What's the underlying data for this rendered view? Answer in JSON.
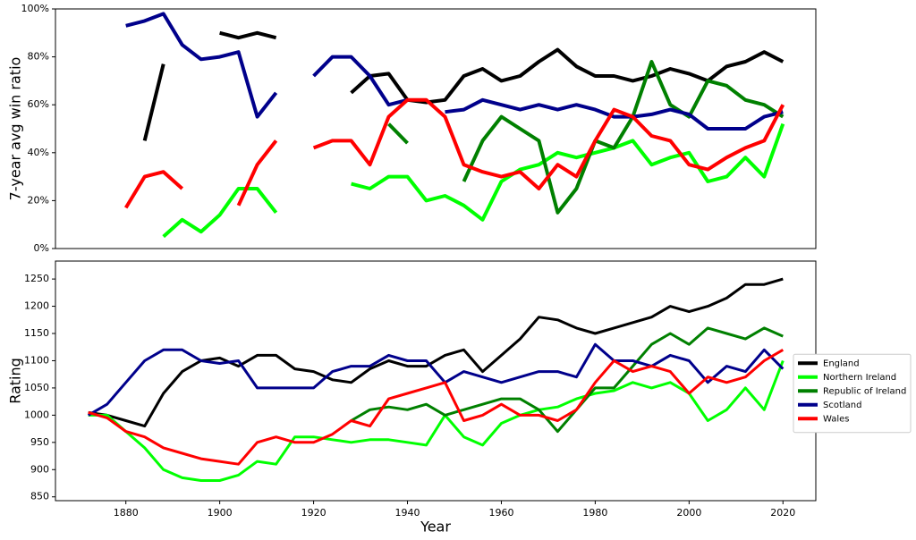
{
  "chart_data": [
    {
      "type": "line",
      "ylabel": "7-year avg win ratio",
      "xlim": [
        1865,
        2027
      ],
      "ylim": [
        0,
        100
      ],
      "yticks": [
        {
          "value": 0,
          "label": "0%"
        },
        {
          "value": 20,
          "label": "20%"
        },
        {
          "value": 40,
          "label": "40%"
        },
        {
          "value": 60,
          "label": "60%"
        },
        {
          "value": 80,
          "label": "80%"
        },
        {
          "value": 100,
          "label": "100%"
        }
      ],
      "x": [
        1872,
        1876,
        1880,
        1884,
        1888,
        1892,
        1896,
        1900,
        1904,
        1908,
        1912,
        1916,
        1920,
        1924,
        1928,
        1932,
        1936,
        1940,
        1944,
        1948,
        1952,
        1956,
        1960,
        1964,
        1968,
        1972,
        1976,
        1980,
        1984,
        1988,
        1992,
        1996,
        2000,
        2004,
        2008,
        2012,
        2016,
        2020
      ],
      "series": [
        {
          "name": "England",
          "color": "#000000",
          "values": [
            null,
            null,
            null,
            45,
            77,
            null,
            null,
            90,
            88,
            90,
            88,
            null,
            null,
            null,
            65,
            72,
            73,
            62,
            61,
            62,
            72,
            75,
            70,
            72,
            78,
            83,
            76,
            72,
            72,
            70,
            72,
            75,
            73,
            70,
            76,
            78,
            82,
            78
          ]
        },
        {
          "name": "Northern Ireland",
          "color": "#00ff00",
          "values": [
            null,
            null,
            null,
            null,
            5,
            12,
            7,
            14,
            25,
            25,
            15,
            null,
            null,
            null,
            27,
            25,
            30,
            30,
            20,
            22,
            18,
            12,
            28,
            33,
            35,
            40,
            38,
            40,
            42,
            45,
            35,
            38,
            40,
            28,
            30,
            38,
            30,
            52
          ]
        },
        {
          "name": "Republic of Ireland",
          "color": "#008000",
          "values": [
            null,
            null,
            null,
            null,
            null,
            null,
            null,
            null,
            null,
            null,
            null,
            null,
            null,
            null,
            null,
            null,
            52,
            44,
            null,
            null,
            28,
            45,
            55,
            50,
            45,
            15,
            25,
            45,
            42,
            55,
            78,
            60,
            55,
            70,
            68,
            62,
            60,
            55
          ]
        },
        {
          "name": "Scotland",
          "color": "#00008b",
          "values": [
            null,
            null,
            93,
            95,
            98,
            85,
            79,
            80,
            82,
            55,
            65,
            null,
            72,
            80,
            80,
            72,
            60,
            62,
            null,
            57,
            58,
            62,
            60,
            58,
            60,
            58,
            60,
            58,
            55,
            55,
            56,
            58,
            56,
            50,
            50,
            50,
            55,
            57
          ]
        },
        {
          "name": "Wales",
          "color": "#ff0000",
          "values": [
            null,
            null,
            17,
            30,
            32,
            25,
            null,
            null,
            18,
            35,
            45,
            null,
            42,
            45,
            45,
            35,
            55,
            62,
            62,
            55,
            35,
            32,
            30,
            32,
            25,
            35,
            30,
            45,
            58,
            55,
            47,
            45,
            35,
            33,
            38,
            42,
            45,
            60
          ]
        }
      ]
    },
    {
      "type": "line",
      "xlabel": "Year",
      "ylabel": "Rating",
      "legend": "right",
      "xlim": [
        1865,
        2027
      ],
      "ylim": [
        843,
        1283
      ],
      "xticks": [
        1880,
        1900,
        1920,
        1940,
        1960,
        1980,
        2000,
        2020
      ],
      "yticks": [
        850,
        900,
        950,
        1000,
        1050,
        1100,
        1150,
        1200,
        1250
      ],
      "x": [
        1872,
        1876,
        1880,
        1884,
        1888,
        1892,
        1896,
        1900,
        1904,
        1908,
        1912,
        1916,
        1920,
        1924,
        1928,
        1932,
        1936,
        1940,
        1944,
        1948,
        1952,
        1956,
        1960,
        1964,
        1968,
        1972,
        1976,
        1980,
        1984,
        1988,
        1992,
        1996,
        2000,
        2004,
        2008,
        2012,
        2016,
        2020
      ],
      "series": [
        {
          "name": "England",
          "color": "#000000",
          "values": [
            1005,
            1000,
            990,
            980,
            1040,
            1080,
            1100,
            1105,
            1090,
            1110,
            1110,
            1085,
            1080,
            1065,
            1060,
            1085,
            1100,
            1090,
            1090,
            1110,
            1120,
            1080,
            1110,
            1140,
            1180,
            1175,
            1160,
            1150,
            1160,
            1170,
            1180,
            1200,
            1190,
            1200,
            1215,
            1240,
            1240,
            1250
          ]
        },
        {
          "name": "Northern Ireland",
          "color": "#00ff00",
          "values": [
            1000,
            1000,
            970,
            940,
            900,
            885,
            880,
            880,
            890,
            915,
            910,
            960,
            960,
            955,
            950,
            955,
            955,
            950,
            945,
            1000,
            960,
            945,
            985,
            1000,
            1010,
            1015,
            1030,
            1040,
            1045,
            1060,
            1050,
            1060,
            1040,
            990,
            1010,
            1050,
            1010,
            1100
          ]
        },
        {
          "name": "Republic of Ireland",
          "color": "#008000",
          "values": [
            null,
            null,
            null,
            null,
            null,
            null,
            null,
            null,
            null,
            null,
            null,
            null,
            null,
            null,
            990,
            1010,
            1015,
            1010,
            1020,
            1000,
            1010,
            1020,
            1030,
            1030,
            1010,
            970,
            1010,
            1050,
            1050,
            1090,
            1130,
            1150,
            1130,
            1160,
            1150,
            1140,
            1160,
            1145
          ]
        },
        {
          "name": "Scotland",
          "color": "#00008b",
          "values": [
            1000,
            1020,
            1060,
            1100,
            1120,
            1120,
            1100,
            1095,
            1100,
            1050,
            1050,
            1050,
            1050,
            1080,
            1090,
            1090,
            1110,
            1100,
            1100,
            1060,
            1080,
            1070,
            1060,
            1070,
            1080,
            1080,
            1070,
            1130,
            1100,
            1100,
            1090,
            1110,
            1100,
            1060,
            1090,
            1080,
            1120,
            1085
          ]
        },
        {
          "name": "Wales",
          "color": "#ff0000",
          "values": [
            1005,
            995,
            970,
            960,
            940,
            930,
            920,
            915,
            910,
            950,
            960,
            950,
            950,
            965,
            990,
            980,
            1030,
            1040,
            1050,
            1060,
            990,
            1000,
            1020,
            1000,
            1000,
            990,
            1010,
            1060,
            1100,
            1080,
            1090,
            1080,
            1040,
            1070,
            1060,
            1070,
            1100,
            1120
          ]
        }
      ]
    }
  ]
}
